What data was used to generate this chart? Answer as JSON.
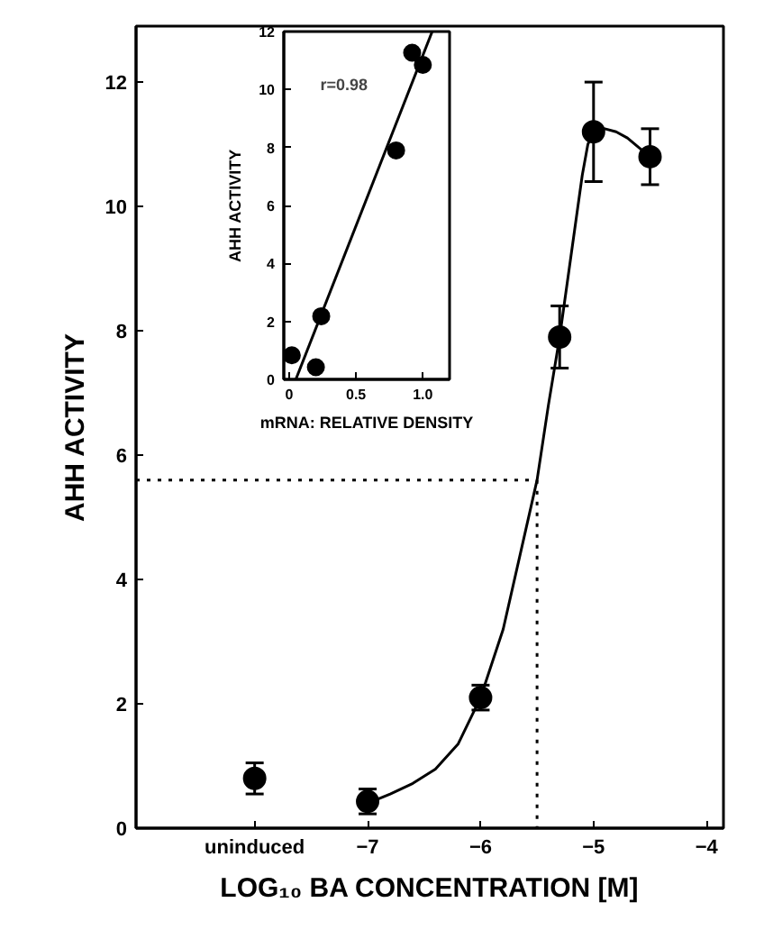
{
  "chart_data": [
    {
      "type": "scatter",
      "xlabel": "LOG₁₀ BA CONCENTRATION [M]",
      "ylabel": "AHH ACTIVITY",
      "xlim": [
        -9.05,
        -3.85
      ],
      "ylim": [
        0,
        12.9
      ],
      "xticks": [
        {
          "value": -8,
          "label": "uninduced"
        },
        -7,
        -6,
        -5,
        -4
      ],
      "yticks": [
        0,
        2,
        4,
        6,
        8,
        10,
        12
      ],
      "series": [
        {
          "marker": "circle",
          "color": "#000000",
          "x": [
            -8,
            -7,
            -6,
            -5.3,
            -5,
            -4.5
          ],
          "values": [
            0.8,
            0.43,
            2.1,
            7.9,
            11.2,
            10.8
          ],
          "errors": [
            0.25,
            0.2,
            0.2,
            0.5,
            0.8,
            0.45
          ]
        },
        {
          "type": "line",
          "color": "#000000",
          "x": [
            -7,
            -6.8,
            -6.6,
            -6.4,
            -6.2,
            -6,
            -5.8,
            -5.6,
            -5.5,
            -5.4,
            -5.3,
            -5.2,
            -5.1,
            -5.05,
            -5,
            -4.9,
            -4.8,
            -4.7,
            -4.6,
            -4.5
          ],
          "values": [
            0.4,
            0.55,
            0.72,
            0.95,
            1.35,
            2.1,
            3.2,
            4.8,
            5.6,
            6.8,
            7.9,
            9.2,
            10.5,
            11.0,
            11.2,
            11.25,
            11.2,
            11.1,
            10.95,
            10.8
          ]
        }
      ],
      "ref_lines": [
        {
          "axis": "y",
          "value": 5.6,
          "line_style": "dotted"
        },
        {
          "axis": "x",
          "value": -5.5,
          "line_style": "dotted"
        }
      ]
    },
    {
      "type": "scatter",
      "xlabel": "mRNA: RELATIVE DENSITY",
      "ylabel": "AHH ACTIVITY",
      "xlim": [
        -0.04,
        1.2
      ],
      "ylim": [
        0,
        12
      ],
      "xticks": [
        0,
        0.5,
        {
          "value": 1,
          "label": "1.0"
        }
      ],
      "yticks": [
        0,
        2,
        4,
        6,
        8,
        10,
        12
      ],
      "annotations": [
        "r=0.98"
      ],
      "series": [
        {
          "marker": "circle",
          "color": "#000000",
          "x": [
            0.02,
            0.2,
            0.24,
            0.8,
            0.92,
            1.0
          ],
          "values": [
            0.83,
            0.42,
            2.18,
            7.9,
            11.27,
            10.85
          ]
        },
        {
          "type": "line",
          "color": "#000000",
          "x": [
            0.05,
            1.07
          ],
          "values": [
            0,
            12
          ]
        }
      ]
    }
  ]
}
